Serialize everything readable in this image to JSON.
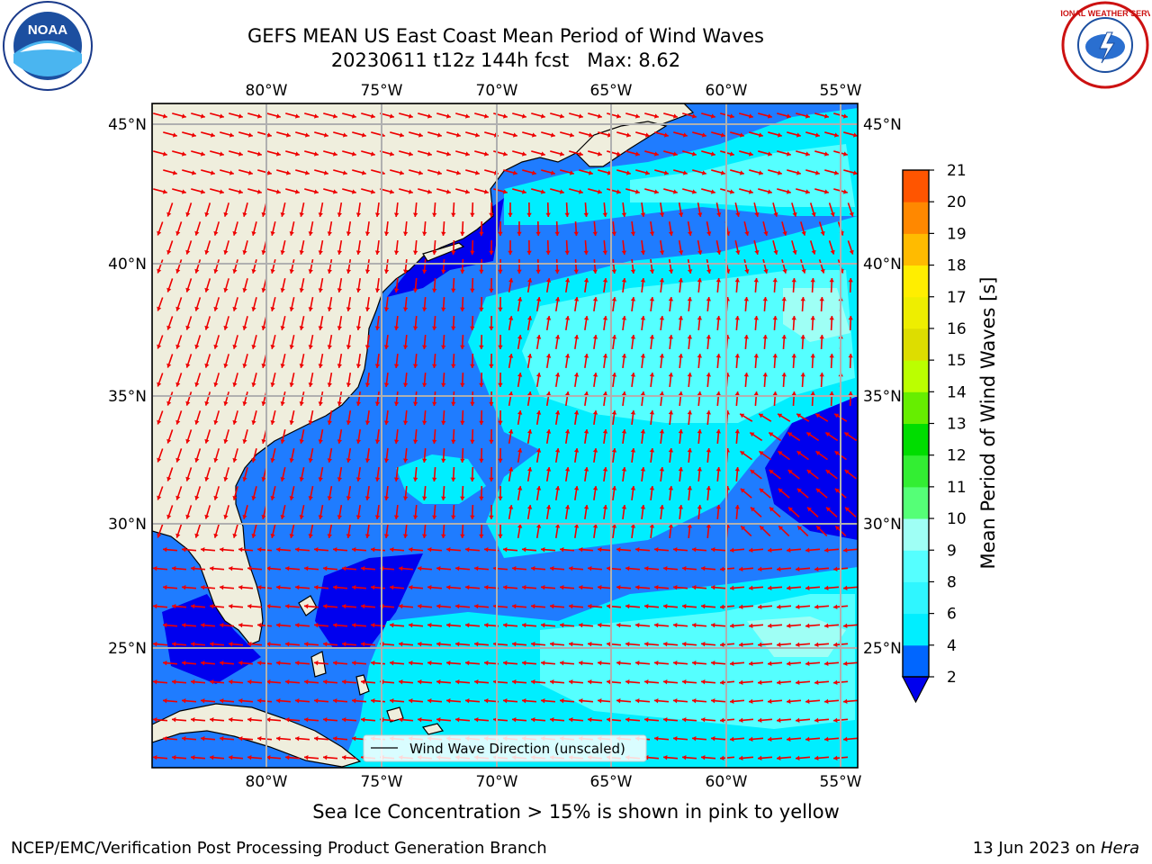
{
  "header": {
    "title_line1": "GEFS MEAN US East Coast Mean Period of Wind Waves",
    "title_line2": "20230611 t12z 144h fcst   Max: 8.62"
  },
  "map": {
    "lon_labels": [
      "80°W",
      "75°W",
      "70°W",
      "65°W",
      "60°W",
      "55°W"
    ],
    "lat_labels": [
      "45°N",
      "40°N",
      "35°N",
      "30°N",
      "25°N"
    ],
    "legend_label": "Wind Wave Direction (unscaled)",
    "colors": {
      "land": "#efeedd",
      "ocean_base": "#1f7cff",
      "ocean_low": "#0000ee",
      "ocean_mid": "#00eeff",
      "ocean_high": "#55ffff",
      "ocean_higher": "#9ffff5",
      "arrow": "#ee0000",
      "grid": "#b0b0b0"
    }
  },
  "colorbar": {
    "title": "Mean Period of Wind Waves [s]",
    "ticks": [
      "2",
      "4",
      "6",
      "8",
      "9",
      "10",
      "11",
      "12",
      "13",
      "14",
      "15",
      "16",
      "17",
      "18",
      "19",
      "20",
      "21"
    ],
    "colors": [
      "#0066ff",
      "#00eeff",
      "#2ff6ff",
      "#55ffff",
      "#9ffff5",
      "#55ff77",
      "#33ee33",
      "#00dd00",
      "#66ee00",
      "#bbff00",
      "#dddd00",
      "#eeee00",
      "#ffee00",
      "#ffbb00",
      "#ff8800",
      "#ff5500",
      "#ff2200",
      "#ff0000"
    ],
    "under_color": "#0000ee"
  },
  "footer": {
    "sea_ice_note": "Sea Ice Concentration > 15% is shown in pink to yellow",
    "left": "NCEP/EMC/Verification Post Processing Product Generation Branch",
    "right_date": "13 Jun 2023 on ",
    "right_host": "Hera"
  },
  "logos": {
    "noaa_text": "NOAA",
    "nws_text": "NATIONAL WEATHER SERVICE"
  }
}
